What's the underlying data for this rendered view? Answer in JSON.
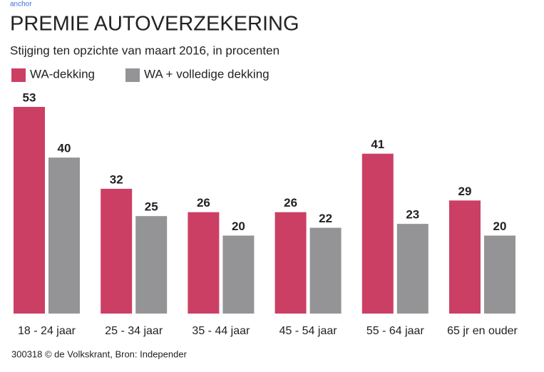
{
  "anchor": "anchor",
  "chart_data": {
    "type": "bar",
    "title": "PREMIE AUTOVERZEKERING",
    "subtitle": "Stijging ten opzichte van maart 2016, in procenten",
    "categories": [
      "18 - 24 jaar",
      "25 - 34 jaar",
      "35 - 44 jaar",
      "45 - 54 jaar",
      "55 - 64 jaar",
      "65 jr en ouder"
    ],
    "series": [
      {
        "name": "WA-dekking",
        "color": "#cc3f64",
        "values": [
          53,
          32,
          26,
          26,
          41,
          29
        ]
      },
      {
        "name": "WA + volledige dekking",
        "color": "#949497",
        "values": [
          40,
          25,
          20,
          22,
          23,
          20
        ]
      }
    ],
    "footer": "300318 © de Volkskrant, Bron: Independer"
  }
}
